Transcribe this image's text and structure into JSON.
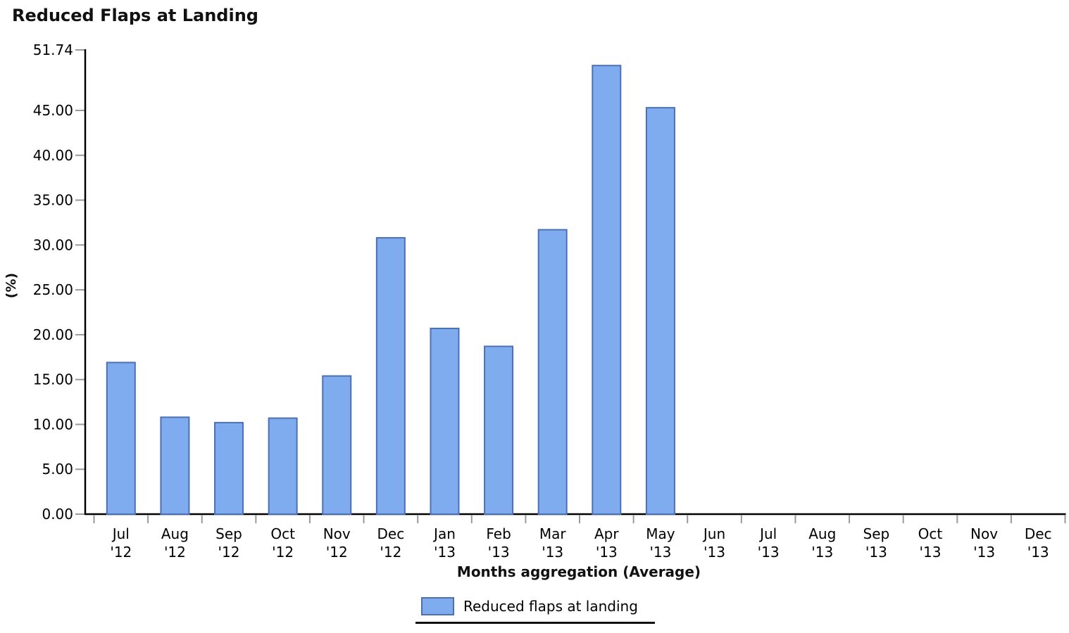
{
  "chart_data": {
    "type": "bar",
    "title": "Reduced Flaps at Landing",
    "xlabel": "Months aggregation (Average)",
    "ylabel": "(%)",
    "categories": [
      "Jul '12",
      "Aug '12",
      "Sep '12",
      "Oct '12",
      "Nov '12",
      "Dec '12",
      "Jan '13",
      "Feb '13",
      "Mar '13",
      "Apr '13",
      "May '13",
      "Jun '13",
      "Jul '13",
      "Aug '13",
      "Sep '13",
      "Oct '13",
      "Nov '13",
      "Dec '13"
    ],
    "values": [
      16.9,
      10.8,
      10.2,
      10.7,
      15.4,
      30.8,
      20.7,
      18.7,
      31.7,
      50.0,
      45.3,
      null,
      null,
      null,
      null,
      null,
      null,
      null
    ],
    "ylim": [
      0,
      51.74
    ],
    "y_ticks": [
      51.74,
      45.0,
      40.0,
      35.0,
      30.0,
      25.0,
      20.0,
      15.0,
      10.0,
      5.0,
      0.0
    ],
    "y_tick_labels": [
      "51.74",
      "45.00",
      "40.00",
      "35.00",
      "30.00",
      "25.00",
      "20.00",
      "15.00",
      "10.00",
      "5.00",
      "0.00"
    ],
    "legend": [
      "Reduced flaps at landing"
    ],
    "legend_position": "bottom",
    "grid": false,
    "colors": {
      "bar_fill": "#7eacee",
      "bar_border": "#4a70bc",
      "axis": "#000000",
      "tick": "#9a9a9a",
      "text": "#000000"
    }
  }
}
